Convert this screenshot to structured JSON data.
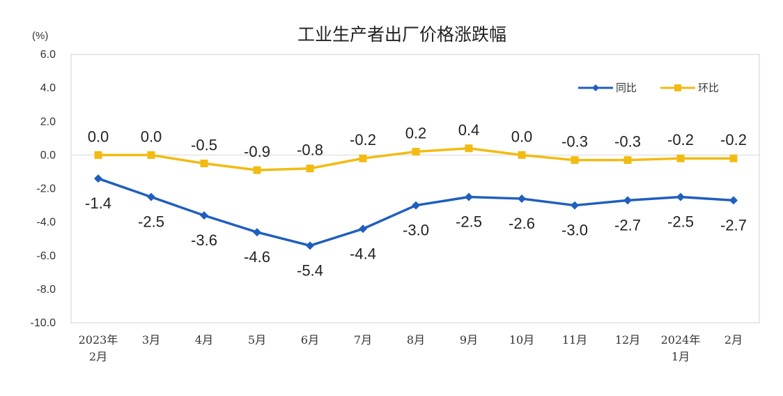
{
  "chart_data": {
    "type": "line",
    "title": "工业生产者出厂价格涨跌幅",
    "unit": "(%)",
    "categories": [
      [
        "2023年",
        "2月"
      ],
      [
        "3月"
      ],
      [
        "4月"
      ],
      [
        "5月"
      ],
      [
        "6月"
      ],
      [
        "7月"
      ],
      [
        "8月"
      ],
      [
        "9月"
      ],
      [
        "10月"
      ],
      [
        "11月"
      ],
      [
        "12月"
      ],
      [
        "2024年",
        "1月"
      ],
      [
        "2月"
      ]
    ],
    "series": [
      {
        "name": "同比",
        "color": "#1f5fbf",
        "marker": "diamond",
        "values": [
          -1.4,
          -2.5,
          -3.6,
          -4.6,
          -5.4,
          -4.4,
          -3.0,
          -2.5,
          -2.6,
          -3.0,
          -2.7,
          -2.5,
          -2.7
        ],
        "labels": [
          "-1.4",
          "-2.5",
          "-3.6",
          "-4.6",
          "-5.4",
          "-4.4",
          "-3.0",
          "-2.5",
          "-2.6",
          "-3.0",
          "-2.7",
          "-2.5",
          "-2.7"
        ],
        "label_position": "below"
      },
      {
        "name": "环比",
        "color": "#f2bb12",
        "marker": "square",
        "values": [
          0.0,
          0.0,
          -0.5,
          -0.9,
          -0.8,
          -0.2,
          0.2,
          0.4,
          0.0,
          -0.3,
          -0.3,
          -0.2,
          -0.2
        ],
        "labels": [
          "0.0",
          "0.0",
          "-0.5",
          "-0.9",
          "-0.8",
          "-0.2",
          "0.2",
          "0.4",
          "0.0",
          "-0.3",
          "-0.3",
          "-0.2",
          "-0.2"
        ],
        "label_position": "above"
      }
    ],
    "ylim": [
      -10.0,
      6.0
    ],
    "yticks": [
      "6.0",
      "4.0",
      "2.0",
      "0.0",
      "-2.0",
      "-4.0",
      "-6.0",
      "-8.0",
      "-10.0"
    ],
    "ytick_values": [
      6,
      4,
      2,
      0,
      -2,
      -4,
      -6,
      -8,
      -10
    ],
    "grid": false,
    "zero_line": true,
    "legend_position": "top-right"
  }
}
